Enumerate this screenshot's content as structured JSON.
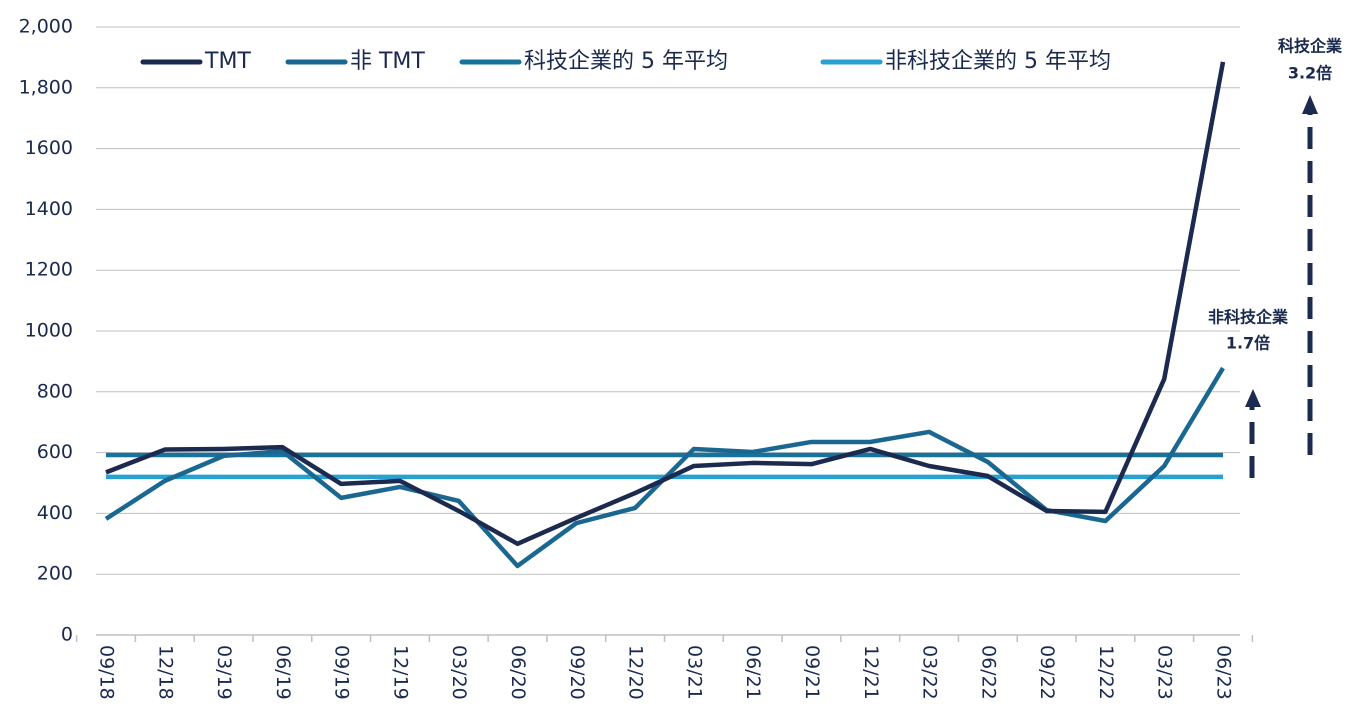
{
  "chart_data": {
    "type": "line",
    "categories": [
      "09/18",
      "12/18",
      "03/19",
      "06/19",
      "09/19",
      "12/19",
      "03/20",
      "06/20",
      "09/20",
      "12/20",
      "03/21",
      "06/21",
      "09/21",
      "12/21",
      "03/22",
      "06/22",
      "09/22",
      "12/22",
      "03/23",
      "06/23"
    ],
    "series": [
      {
        "name": "TMT",
        "color": "#1b2a4e",
        "values": [
          535,
          610,
          612,
          618,
          497,
          507,
          408,
          300,
          385,
          467,
          556,
          566,
          562,
          612,
          556,
          523,
          408,
          405,
          842,
          1885
        ]
      },
      {
        "name": "非 TMT",
        "color": "#1a6791",
        "values": [
          382,
          507,
          589,
          605,
          451,
          487,
          441,
          227,
          368,
          418,
          612,
          602,
          635,
          635,
          668,
          569,
          411,
          375,
          556,
          878
        ]
      },
      {
        "name": "科技企業的 5 年平均",
        "color": "#17739c",
        "values": [
          592,
          592,
          592,
          592,
          592,
          592,
          592,
          592,
          592,
          592,
          592,
          592,
          592,
          592,
          592,
          592,
          592,
          592,
          592,
          592
        ]
      },
      {
        "name": "非科技企業的 5 年平均",
        "color": "#29a0d2",
        "values": [
          520,
          520,
          520,
          520,
          520,
          520,
          520,
          520,
          520,
          520,
          520,
          520,
          520,
          520,
          520,
          520,
          520,
          520,
          520,
          520
        ]
      }
    ],
    "ylim": [
      0,
      2000
    ],
    "yticks": [
      0,
      200,
      400,
      600,
      800,
      1000,
      1200,
      1400,
      1600,
      {
        "value": 1800,
        "label": "1,800"
      },
      {
        "value": 2000,
        "label": "2,000"
      }
    ],
    "grid": true,
    "annotations": [
      {
        "lines": [
          "科技企業",
          "3.2倍"
        ]
      },
      {
        "lines": [
          "非科技企業",
          "1.7倍"
        ]
      }
    ]
  }
}
